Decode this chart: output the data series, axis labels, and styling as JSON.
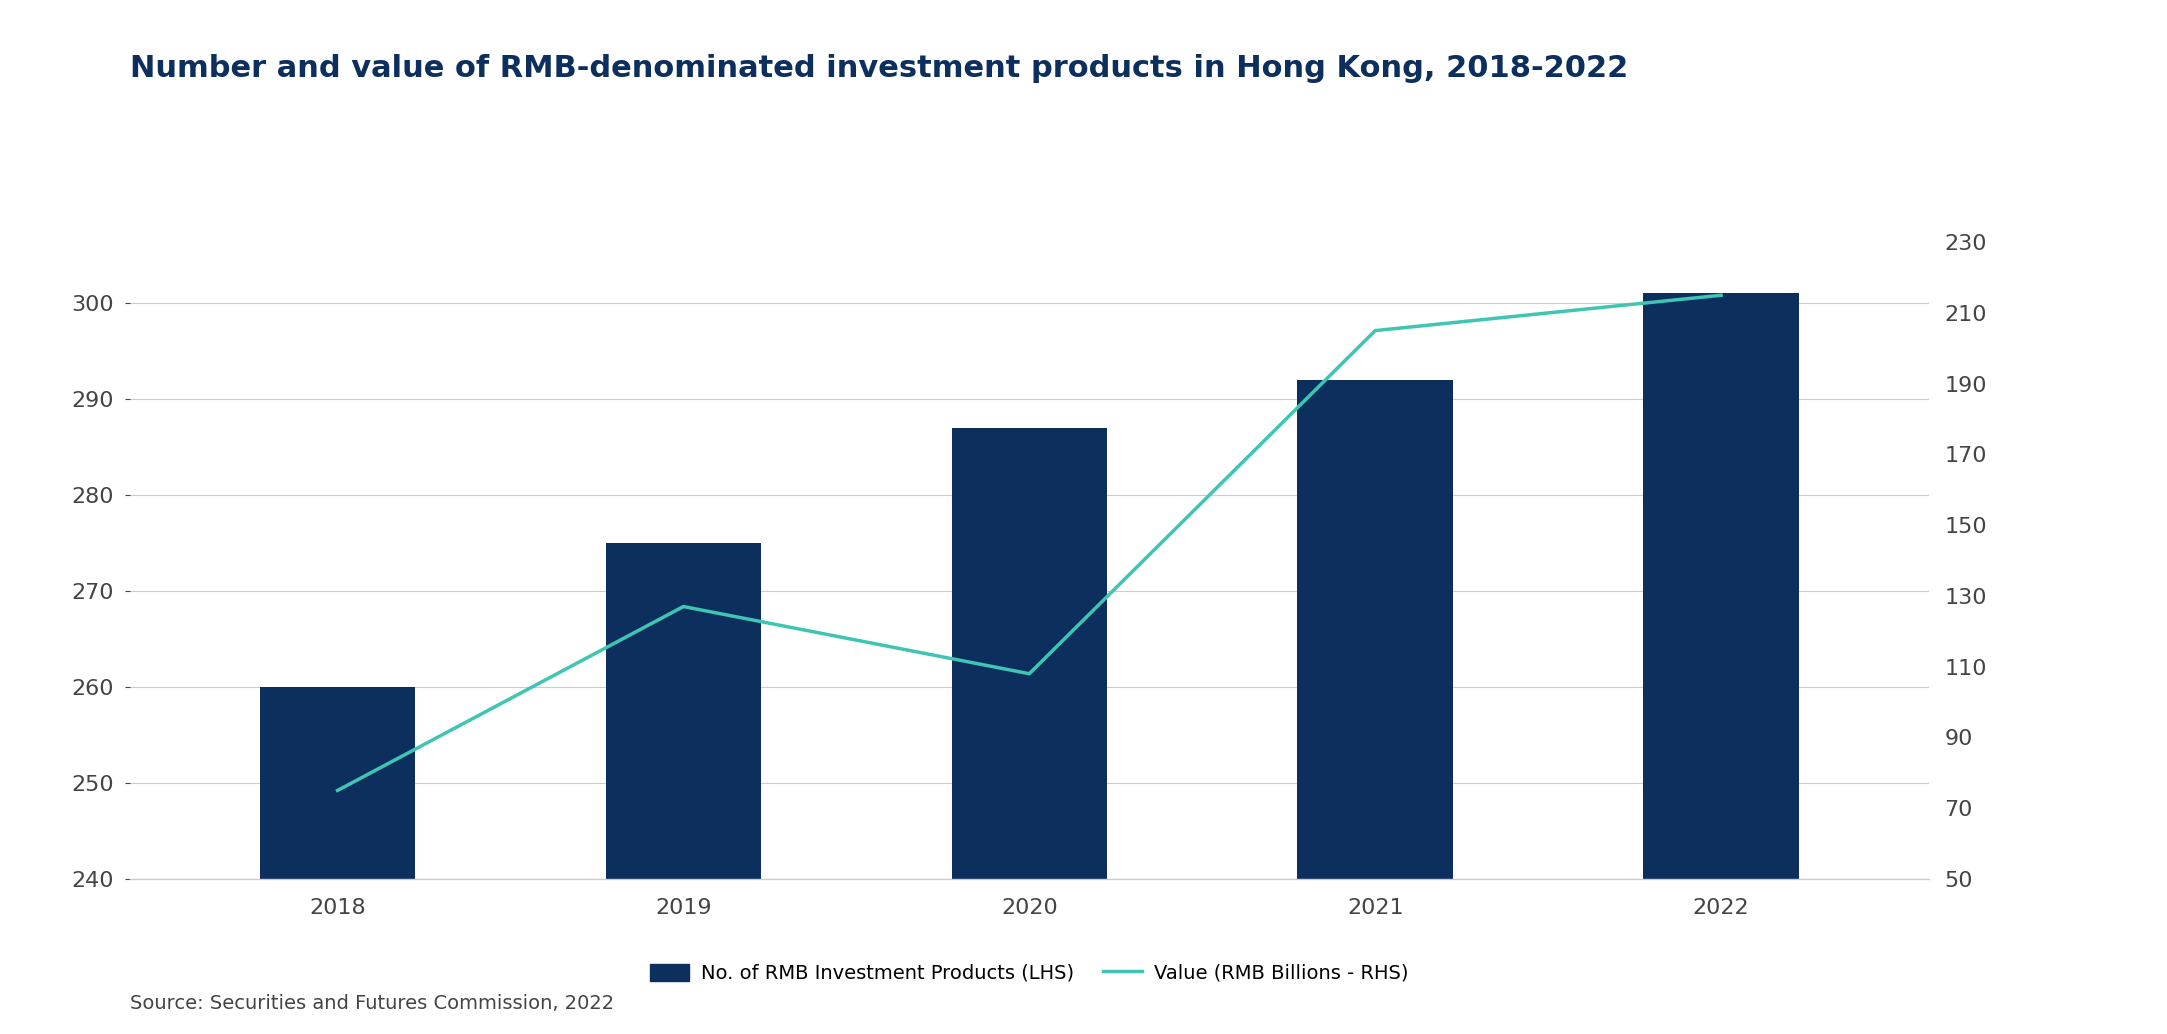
{
  "title": "Number and value of RMB-denominated investment products in Hong Kong, 2018-2022",
  "source": "Source: Securities and Futures Commission, 2022",
  "years": [
    2018,
    2019,
    2020,
    2021,
    2022
  ],
  "bar_values": [
    260,
    275,
    287,
    292,
    301
  ],
  "line_values": [
    75,
    127,
    108,
    205,
    215
  ],
  "bar_color": "#0d2f5e",
  "line_color": "#40c4b4",
  "background_color": "#ffffff",
  "lhs_ylim": [
    240,
    310
  ],
  "lhs_yticks": [
    240,
    250,
    260,
    270,
    280,
    290,
    300
  ],
  "rhs_ylim": [
    50,
    240
  ],
  "rhs_yticks": [
    50,
    70,
    90,
    110,
    130,
    150,
    170,
    190,
    210,
    230
  ],
  "legend_bar_label": "No. of RMB Investment Products (LHS)",
  "legend_line_label": "Value (RMB Billions - RHS)",
  "title_fontsize": 22,
  "tick_fontsize": 16,
  "legend_fontsize": 14,
  "source_fontsize": 14,
  "bar_width": 0.45,
  "grid_color": "#cccccc",
  "axis_label_color": "#444444",
  "title_color": "#0d2f5e"
}
